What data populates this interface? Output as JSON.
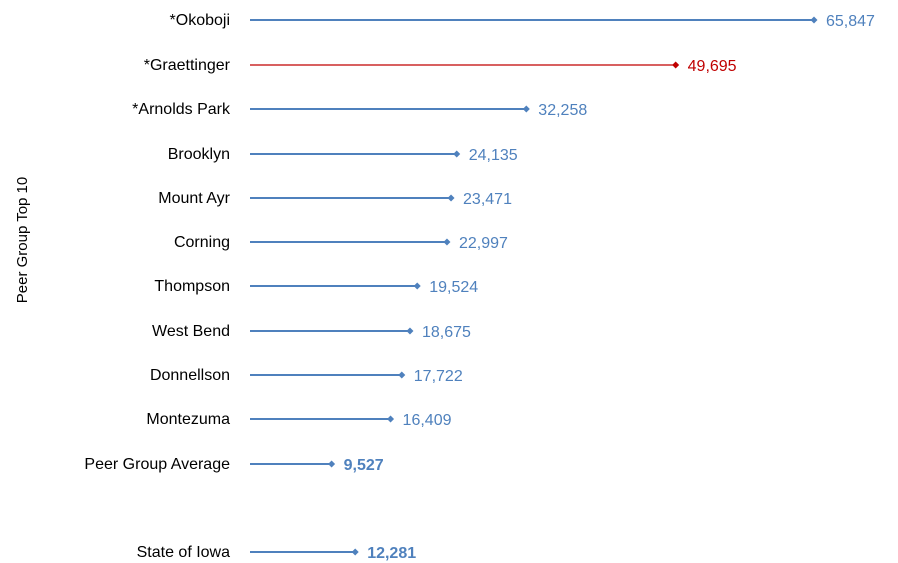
{
  "chart_data": {
    "type": "bar",
    "orientation": "horizontal",
    "ylabel": "Peer Group Top 10",
    "xlabel": "",
    "title": "",
    "grid": false,
    "legend": "none",
    "xlim": [
      0,
      65847
    ],
    "categories": [
      "*Okoboji",
      "*Graettinger",
      "*Arnolds Park",
      "Brooklyn",
      "Mount Ayr",
      "Corning",
      "Thompson",
      "West Bend",
      "Donnellson",
      "Montezuma",
      "Peer Group Average",
      "State of Iowa"
    ],
    "values": [
      65847,
      49695,
      32258,
      24135,
      23471,
      22997,
      19524,
      18675,
      17722,
      16409,
      9527,
      12281
    ],
    "value_labels": [
      "65,847",
      "49,695",
      "32,258",
      "24,135",
      "23,471",
      "22,997",
      "19,524",
      "18,675",
      "17,722",
      "16,409",
      "9,527",
      "12,281"
    ],
    "highlight_index": 1,
    "bold_label_indices": [
      10,
      11
    ],
    "colors": {
      "default": "#4f81bd",
      "highlight": "#c00000"
    }
  }
}
